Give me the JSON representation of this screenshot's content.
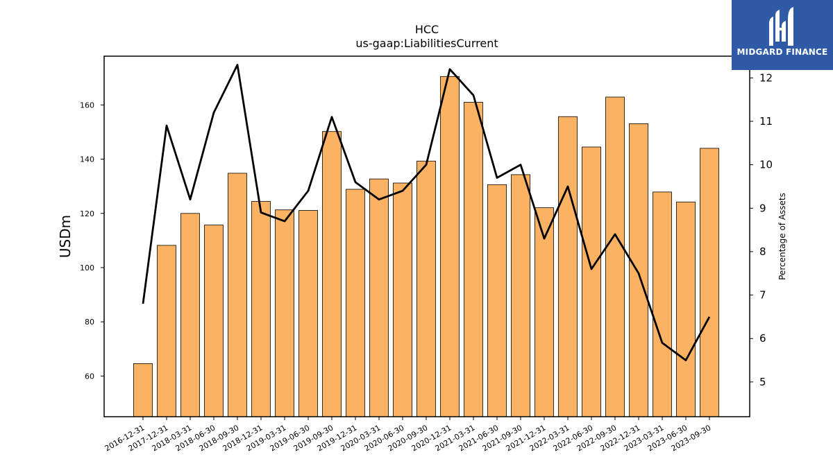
{
  "chart_data": {
    "type": "bar",
    "title": "HCC",
    "subtitle": "us-gaap:LiabilitiesCurrent",
    "xlabel": "",
    "ylabel": "USDm",
    "ylabel_right": "Percentage of Assets",
    "ylim": [
      45,
      178
    ],
    "ylim_right": [
      4.2,
      12.5
    ],
    "yticks": [
      60,
      80,
      100,
      120,
      140,
      160
    ],
    "yticks_right": [
      5,
      6,
      7,
      8,
      9,
      10,
      11,
      12
    ],
    "grid": false,
    "bar_color": "#fbb262",
    "line_color": "#000000",
    "categories": [
      "2016-12-31",
      "2017-12-31",
      "2018-03-31",
      "2018-06-30",
      "2018-09-30",
      "2018-12-31",
      "2019-03-31",
      "2019-06-30",
      "2019-09-30",
      "2019-12-31",
      "2020-03-31",
      "2020-06-30",
      "2020-09-30",
      "2020-12-31",
      "2021-03-31",
      "2021-06-30",
      "2021-09-30",
      "2021-12-31",
      "2022-03-31",
      "2022-06-30",
      "2022-09-30",
      "2022-12-31",
      "2023-03-31",
      "2023-06-30",
      "2023-09-30"
    ],
    "series": [
      {
        "axis": "left",
        "kind": "bar",
        "values": [
          64.6,
          108.2,
          120.0,
          115.7,
          134.8,
          124.4,
          121.3,
          121.1,
          150.2,
          128.9,
          132.7,
          131.2,
          139.3,
          170.5,
          161.0,
          130.6,
          134.3,
          122.1,
          155.7,
          144.5,
          162.9,
          153.1,
          127.9,
          124.2,
          144.0
        ]
      },
      {
        "axis": "right",
        "kind": "line",
        "values": [
          6.8,
          10.9,
          9.2,
          11.2,
          12.3,
          8.9,
          8.7,
          9.4,
          11.1,
          9.6,
          9.2,
          9.4,
          10.0,
          12.2,
          11.6,
          9.7,
          10.0,
          8.3,
          9.5,
          7.6,
          8.4,
          7.5,
          5.9,
          5.5,
          6.5
        ]
      }
    ]
  },
  "branding": {
    "logo_text": "MIDGARD FINANCE",
    "logo_color": "#2f5aa8"
  }
}
